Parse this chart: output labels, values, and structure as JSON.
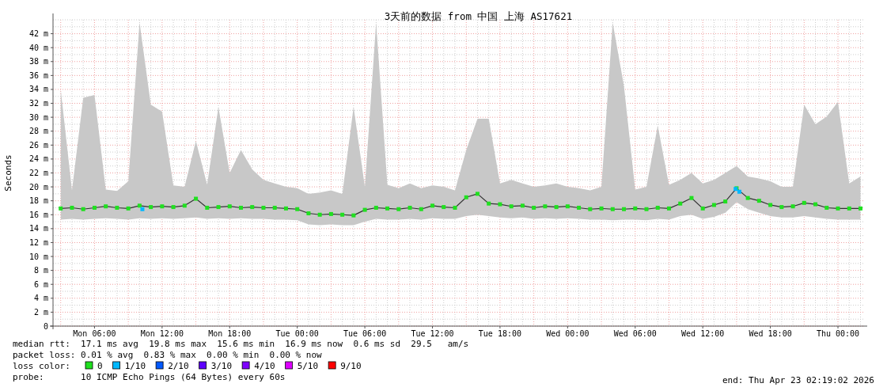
{
  "chart_data": {
    "type": "line",
    "title": "3天前的数据 from  中国 上海 AS17621",
    "ylabel": "Seconds",
    "x": [
      "2026-04-20T03:00",
      "2026-04-20T04:00",
      "2026-04-20T05:00",
      "2026-04-20T06:00",
      "2026-04-20T07:00",
      "2026-04-20T08:00",
      "2026-04-20T09:00",
      "2026-04-20T10:00",
      "2026-04-20T11:00",
      "2026-04-20T12:00",
      "2026-04-20T13:00",
      "2026-04-20T14:00",
      "2026-04-20T15:00",
      "2026-04-20T16:00",
      "2026-04-20T17:00",
      "2026-04-20T18:00",
      "2026-04-20T19:00",
      "2026-04-20T20:00",
      "2026-04-20T21:00",
      "2026-04-20T22:00",
      "2026-04-20T23:00",
      "2026-04-21T00:00",
      "2026-04-21T01:00",
      "2026-04-21T02:00",
      "2026-04-21T03:00",
      "2026-04-21T04:00",
      "2026-04-21T05:00",
      "2026-04-21T06:00",
      "2026-04-21T07:00",
      "2026-04-21T08:00",
      "2026-04-21T09:00",
      "2026-04-21T10:00",
      "2026-04-21T11:00",
      "2026-04-21T12:00",
      "2026-04-21T13:00",
      "2026-04-21T14:00",
      "2026-04-21T15:00",
      "2026-04-21T16:00",
      "2026-04-21T17:00",
      "2026-04-21T18:00",
      "2026-04-21T19:00",
      "2026-04-21T20:00",
      "2026-04-21T21:00",
      "2026-04-21T22:00",
      "2026-04-21T23:00",
      "2026-04-22T00:00",
      "2026-04-22T01:00",
      "2026-04-22T02:00",
      "2026-04-22T03:00",
      "2026-04-22T04:00",
      "2026-04-22T05:00",
      "2026-04-22T06:00",
      "2026-04-22T07:00",
      "2026-04-22T08:00",
      "2026-04-22T09:00",
      "2026-04-22T10:00",
      "2026-04-22T11:00",
      "2026-04-22T12:00",
      "2026-04-22T13:00",
      "2026-04-22T14:00",
      "2026-04-22T15:00",
      "2026-04-22T16:00",
      "2026-04-22T17:00",
      "2026-04-22T18:00",
      "2026-04-22T19:00",
      "2026-04-22T20:00",
      "2026-04-22T21:00",
      "2026-04-22T22:00",
      "2026-04-22T23:00",
      "2026-04-23T00:00",
      "2026-04-23T01:00",
      "2026-04-23T02:00"
    ],
    "series": [
      {
        "name": "0",
        "color": "#20e020",
        "marker": "square",
        "values": [
          16.9,
          17.0,
          16.8,
          17.0,
          17.2,
          17.0,
          16.9,
          17.3,
          17.1,
          17.2,
          17.1,
          17.3,
          18.3,
          17.0,
          17.1,
          17.2,
          17.0,
          17.1,
          17.0,
          17.0,
          16.9,
          16.8,
          16.2,
          16.0,
          16.1,
          16.0,
          15.9,
          16.7,
          17.0,
          16.9,
          16.8,
          17.0,
          16.8,
          17.3,
          17.1,
          17.0,
          18.5,
          19.0,
          17.6,
          17.5,
          17.2,
          17.3,
          17.0,
          17.2,
          17.1,
          17.2,
          17.0,
          16.8,
          16.9,
          16.8,
          16.8,
          16.9,
          16.8,
          17.0,
          16.9,
          17.6,
          18.4,
          16.9,
          17.4,
          17.9,
          19.8,
          18.4,
          18.0,
          17.4,
          17.1,
          17.2,
          17.7,
          17.5,
          17.0,
          16.9,
          16.9,
          16.9
        ],
        "lower": [
          15.3,
          15.4,
          15.3,
          15.4,
          15.5,
          15.4,
          15.3,
          15.5,
          15.4,
          15.5,
          15.4,
          15.5,
          15.6,
          15.4,
          15.5,
          15.4,
          15.5,
          15.4,
          15.4,
          15.3,
          15.3,
          15.2,
          14.6,
          14.5,
          14.6,
          14.5,
          14.5,
          15.0,
          15.4,
          15.3,
          15.3,
          15.4,
          15.3,
          15.5,
          15.4,
          15.4,
          15.8,
          16.0,
          15.8,
          15.6,
          15.5,
          15.6,
          15.4,
          15.5,
          15.4,
          15.5,
          15.4,
          15.3,
          15.3,
          15.2,
          15.3,
          15.3,
          15.2,
          15.4,
          15.3,
          15.8,
          16.0,
          15.4,
          15.7,
          16.3,
          17.8,
          16.8,
          16.3,
          15.8,
          15.6,
          15.6,
          15.8,
          15.6,
          15.4,
          15.3,
          15.3,
          15.3
        ],
        "upper": [
          34,
          19.5,
          32.8,
          33.2,
          19.6,
          19.4,
          20.8,
          43.6,
          31.8,
          30.8,
          20.2,
          20.0,
          26.6,
          20.3,
          31.5,
          22.0,
          25.3,
          22.5,
          21.0,
          20.5,
          20.0,
          19.8,
          19.0,
          19.2,
          19.5,
          19.0,
          31.5,
          20.0,
          43.6,
          20.3,
          19.8,
          20.5,
          19.8,
          20.2,
          20.0,
          19.5,
          25.3,
          29.8,
          29.8,
          20.5,
          21.0,
          20.5,
          20.0,
          20.2,
          20.5,
          20.0,
          19.8,
          19.5,
          20.0,
          43.6,
          34.5,
          19.6,
          20.0,
          28.8,
          20.3,
          21.0,
          22.0,
          20.5,
          21.0,
          22.0,
          23.0,
          21.5,
          21.2,
          20.8,
          20.0,
          20.0,
          31.8,
          29.0,
          30.1,
          32.2,
          20.5,
          21.5
        ]
      },
      {
        "name": "1/10",
        "type": "scatter",
        "color": "#00b8ff",
        "marker": "square",
        "x": [
          "2026-04-20T10:15",
          "2026-04-22T14:55",
          "2026-04-22T15:15"
        ],
        "values": [
          16.8,
          19.7,
          19.3
        ]
      },
      {
        "name": "2/10",
        "type": "scatter",
        "color": "#0059ff",
        "marker": "square",
        "values": [
          null,
          null,
          null,
          null,
          null,
          null,
          null,
          null,
          null,
          null,
          null,
          null,
          null,
          null,
          null,
          null,
          null,
          null,
          null,
          null,
          null,
          null,
          null,
          null,
          null,
          null,
          null,
          null,
          null,
          null,
          null,
          null,
          null,
          null,
          null,
          null,
          null,
          null,
          null,
          null,
          null,
          null,
          null,
          null,
          null,
          null,
          null,
          null,
          null,
          null,
          null,
          null,
          null,
          null,
          null,
          null,
          null,
          null,
          null,
          null,
          null,
          null,
          null,
          null,
          null,
          null,
          null,
          null,
          null,
          null,
          null,
          null
        ]
      },
      {
        "name": "3/10",
        "type": "scatter",
        "color": "#5e00ff",
        "marker": "square",
        "values": [
          null,
          null,
          null,
          null,
          null,
          null,
          null,
          null,
          null,
          null,
          null,
          null,
          null,
          null,
          null,
          null,
          null,
          null,
          null,
          null,
          null,
          null,
          null,
          null,
          null,
          null,
          null,
          null,
          null,
          null,
          null,
          null,
          null,
          null,
          null,
          null,
          null,
          null,
          null,
          null,
          null,
          null,
          null,
          null,
          null,
          null,
          null,
          null,
          null,
          null,
          null,
          null,
          null,
          null,
          null,
          null,
          null,
          null,
          null,
          null,
          null,
          null,
          null,
          null,
          null,
          null,
          null,
          null,
          null,
          null,
          null,
          null
        ]
      },
      {
        "name": "4/10",
        "type": "scatter",
        "color": "#7e00ff",
        "marker": "square",
        "values": [
          null,
          null,
          null,
          null,
          null,
          null,
          null,
          null,
          null,
          null,
          null,
          null,
          null,
          null,
          null,
          null,
          null,
          null,
          null,
          null,
          null,
          null,
          null,
          null,
          null,
          null,
          null,
          null,
          null,
          null,
          null,
          null,
          null,
          null,
          null,
          null,
          null,
          null,
          null,
          null,
          null,
          null,
          null,
          null,
          null,
          null,
          null,
          null,
          null,
          null,
          null,
          null,
          null,
          null,
          null,
          null,
          null,
          null,
          null,
          null,
          null,
          null,
          null,
          null,
          null,
          null,
          null,
          null,
          null,
          null,
          null,
          null
        ]
      },
      {
        "name": "5/10",
        "type": "scatter",
        "color": "#dd00ff",
        "marker": "square",
        "values": [
          null,
          null,
          null,
          null,
          null,
          null,
          null,
          null,
          null,
          null,
          null,
          null,
          null,
          null,
          null,
          null,
          null,
          null,
          null,
          null,
          null,
          null,
          null,
          null,
          null,
          null,
          null,
          null,
          null,
          null,
          null,
          null,
          null,
          null,
          null,
          null,
          null,
          null,
          null,
          null,
          null,
          null,
          null,
          null,
          null,
          null,
          null,
          null,
          null,
          null,
          null,
          null,
          null,
          null,
          null,
          null,
          null,
          null,
          null,
          null,
          null,
          null,
          null,
          null,
          null,
          null,
          null,
          null,
          null,
          null,
          null,
          null
        ]
      },
      {
        "name": "9/10",
        "type": "scatter",
        "color": "#ff0000",
        "marker": "square",
        "values": [
          null,
          null,
          null,
          null,
          null,
          null,
          null,
          null,
          null,
          null,
          null,
          null,
          null,
          null,
          null,
          null,
          null,
          null,
          null,
          null,
          null,
          null,
          null,
          null,
          null,
          null,
          null,
          null,
          null,
          null,
          null,
          null,
          null,
          null,
          null,
          null,
          null,
          null,
          null,
          null,
          null,
          null,
          null,
          null,
          null,
          null,
          null,
          null,
          null,
          null,
          null,
          null,
          null,
          null,
          null,
          null,
          null,
          null,
          null,
          null,
          null,
          null,
          null,
          null,
          null,
          null,
          null,
          null,
          null,
          null,
          null,
          null
        ]
      }
    ],
    "xlim": [
      "2026-04-20T02:19",
      "2026-04-23T02:19"
    ],
    "xticks": [
      {
        "value": "2026-04-20T06:00",
        "label": "Mon 06:00"
      },
      {
        "value": "2026-04-20T12:00",
        "label": "Mon 12:00"
      },
      {
        "value": "2026-04-20T18:00",
        "label": "Mon 18:00"
      },
      {
        "value": "2026-04-21T00:00",
        "label": "Tue 00:00"
      },
      {
        "value": "2026-04-21T06:00",
        "label": "Tue 06:00"
      },
      {
        "value": "2026-04-21T12:00",
        "label": "Tue 12:00"
      },
      {
        "value": "2026-04-21T18:00",
        "label": "Tue 18:00"
      },
      {
        "value": "2026-04-22T00:00",
        "label": "Wed 00:00"
      },
      {
        "value": "2026-04-22T06:00",
        "label": "Wed 06:00"
      },
      {
        "value": "2026-04-22T12:00",
        "label": "Wed 12:00"
      },
      {
        "value": "2026-04-22T18:00",
        "label": "Wed 18:00"
      },
      {
        "value": "2026-04-23T00:00",
        "label": "Thu 00:00"
      }
    ],
    "ylim": [
      0,
      44
    ],
    "yticks": [
      0,
      {
        "value": 2,
        "label": "2 m"
      },
      {
        "value": 4,
        "label": "4 m"
      },
      {
        "value": 6,
        "label": "6 m"
      },
      {
        "value": 8,
        "label": "8 m"
      },
      {
        "value": 10,
        "label": "10 m"
      },
      {
        "value": 12,
        "label": "12 m"
      },
      {
        "value": 14,
        "label": "14 m"
      },
      {
        "value": 16,
        "label": "16 m"
      },
      {
        "value": 18,
        "label": "18 m"
      },
      {
        "value": 20,
        "label": "20 m"
      },
      {
        "value": 22,
        "label": "22 m"
      },
      {
        "value": 24,
        "label": "24 m"
      },
      {
        "value": 26,
        "label": "26 m"
      },
      {
        "value": 28,
        "label": "28 m"
      },
      {
        "value": 30,
        "label": "30 m"
      },
      {
        "value": 32,
        "label": "32 m"
      },
      {
        "value": 34,
        "label": "34 m"
      },
      {
        "value": 36,
        "label": "36 m"
      },
      {
        "value": 38,
        "label": "38 m"
      },
      {
        "value": 40,
        "label": "40 m"
      },
      {
        "value": 42,
        "label": "42 m"
      }
    ],
    "grid": true,
    "legend": "bottom",
    "legend_title": "loss color:",
    "annotations": [
      "median rtt:  17.1 ms avg  19.8 ms max  15.6 ms min  16.9 ms now  0.6 ms sd  29.5   am/s",
      "packet loss: 0.01 % avg  0.83 % max  0.00 % min  0.00 % now",
      "probe:       10 ICMP Echo Pings (64 Bytes) every 60s",
      "end: Thu Apr 23 02:19:02 2026"
    ]
  }
}
